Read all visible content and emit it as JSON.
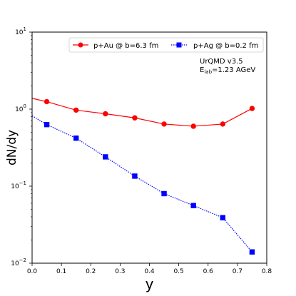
{
  "chart_data": {
    "type": "line",
    "xlabel": "y",
    "ylabel": "dN/dy",
    "xlim": [
      0,
      0.8
    ],
    "ylim": [
      0.01,
      10
    ],
    "yscale": "log",
    "x_ticks": [
      "0.0",
      "0.1",
      "0.2",
      "0.3",
      "0.4",
      "0.5",
      "0.6",
      "0.7",
      "0.8"
    ],
    "y_ticks": [
      {
        "value": 0.01,
        "base": "10",
        "exp": "−2"
      },
      {
        "value": 0.1,
        "base": "10",
        "exp": "−1"
      },
      {
        "value": 1,
        "base": "10",
        "exp": "0"
      },
      {
        "value": 10,
        "base": "10",
        "exp": "1"
      }
    ],
    "legend_position": "top",
    "annotation": {
      "line1": "UrQMD v3.5",
      "line2_main": "E",
      "line2_sub": "lab",
      "line2_rest": "=1.23 AGeV"
    },
    "series": [
      {
        "name": "p+Au @ b=6.3 fm",
        "color": "#ff0000",
        "marker": "circle",
        "linestyle": "solid",
        "x": [
          0.05,
          0.15,
          0.25,
          0.35,
          0.45,
          0.55,
          0.65,
          0.75
        ],
        "y": [
          1.25,
          0.97,
          0.87,
          0.77,
          0.64,
          0.6,
          0.64,
          1.02
        ],
        "edge_start": {
          "x": 0.0,
          "y": 1.38
        }
      },
      {
        "name": "p+Ag @ b=0.2 fm",
        "color": "#0000ff",
        "marker": "square",
        "linestyle": "dotted",
        "x": [
          0.05,
          0.15,
          0.25,
          0.35,
          0.45,
          0.55,
          0.65,
          0.75
        ],
        "y": [
          0.63,
          0.42,
          0.24,
          0.135,
          0.08,
          0.056,
          0.039,
          0.014
        ],
        "edge_start": {
          "x": 0.0,
          "y": 0.82
        }
      }
    ]
  }
}
